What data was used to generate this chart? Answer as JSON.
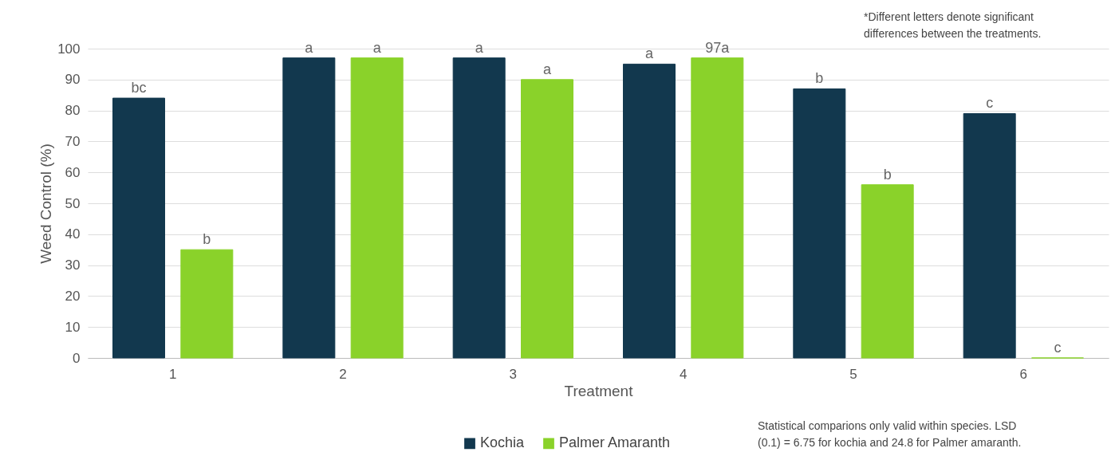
{
  "chart_data": {
    "type": "bar",
    "xlabel": "Treatment",
    "ylabel": "Weed Control (%)",
    "categories": [
      "1",
      "2",
      "3",
      "4",
      "5",
      "6"
    ],
    "series": [
      {
        "name": "Kochia",
        "color": "#12384e",
        "values": [
          84,
          97,
          97,
          95,
          87,
          79
        ],
        "value_labels": [
          "bc",
          "a",
          "a",
          "a",
          "b",
          "c"
        ]
      },
      {
        "name": "Palmer Amaranth",
        "color": "#8ad22a",
        "values": [
          35,
          97,
          90,
          97,
          56,
          0
        ],
        "value_labels": [
          "b",
          "a",
          "a",
          "97a",
          "b",
          "c"
        ]
      }
    ],
    "ylim": [
      0,
      100
    ],
    "yticks": [
      0,
      10,
      20,
      30,
      40,
      50,
      60,
      70,
      80,
      90,
      100
    ],
    "grid": "y",
    "legend": "bottom",
    "annotations": [
      "*Different letters denote significant\ndifferences between the treatments.",
      "Statistical comparions only valid within species. LSD\n(0.1) = 6.75 for kochia and 24.8 for Palmer amaranth."
    ]
  }
}
